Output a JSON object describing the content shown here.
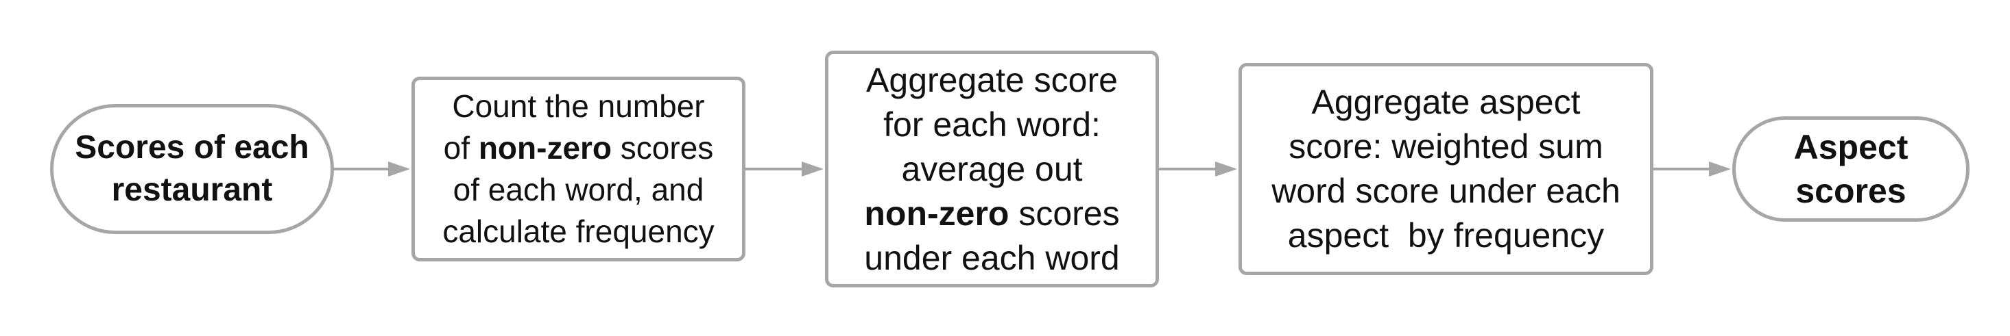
{
  "diagram": {
    "start_node": {
      "lines": [
        "Scores of each",
        "restaurant"
      ]
    },
    "step1": {
      "line1": "Count the number",
      "line2_prefix": "of ",
      "line2_bold": "non-zero",
      "line2_suffix": " scores",
      "line3": "of each word, and",
      "line4": "calculate frequency"
    },
    "step2": {
      "line1": "Aggregate score",
      "line2": "for each word:",
      "line3": "average out",
      "line4_bold": "non-zero",
      "line4_suffix": " scores",
      "line5": "under each word"
    },
    "step3": {
      "line1": "Aggregate aspect",
      "line2": "score: weighted sum",
      "line3": "word score under each",
      "line4": "aspect  by frequency"
    },
    "end_node": {
      "lines": [
        "Aspect",
        "scores"
      ]
    },
    "colors": {
      "border": "#a6a6a6",
      "arrow": "#a6a6a6",
      "text": "#111111"
    }
  }
}
